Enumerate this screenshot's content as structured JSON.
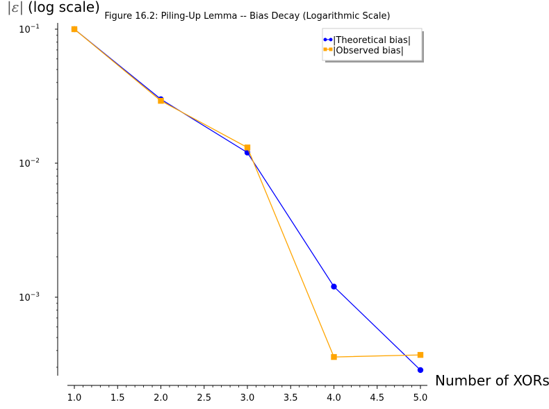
{
  "chart_data": {
    "type": "line",
    "title": "Figure 16.2: Piling-Up Lemma -- Bias Decay (Logarithmic Scale)",
    "xlabel": "Number of XORs",
    "ylabel": "|ε| (log scale)",
    "ylabel_symbol": "ε",
    "ylabel_suffix": "(log scale)",
    "yscale": "log",
    "xlim": [
      1.0,
      5.0
    ],
    "ylim": [
      0.00025,
      0.11
    ],
    "x_ticks": [
      "1.0",
      "1.5",
      "2.0",
      "2.5",
      "3.0",
      "3.5",
      "4.0",
      "4.5",
      "5.0"
    ],
    "y_ticks": [
      {
        "value": 0.1,
        "base": "10",
        "exp": "−1"
      },
      {
        "value": 0.01,
        "base": "10",
        "exp": "−2"
      },
      {
        "value": 0.001,
        "base": "10",
        "exp": "−3"
      }
    ],
    "grid": false,
    "legend_position": "upper right",
    "x": [
      1,
      2,
      3,
      4,
      5
    ],
    "series": [
      {
        "name": "|Theoretical bias|",
        "color": "#0000ff",
        "marker": "circle",
        "values": [
          0.1,
          0.03,
          0.012,
          0.0012,
          0.000286
        ]
      },
      {
        "name": "|Observed bias|",
        "color": "#ffa500",
        "marker": "square",
        "values": [
          0.1,
          0.0292,
          0.0131,
          0.000358,
          0.000371
        ]
      }
    ]
  }
}
